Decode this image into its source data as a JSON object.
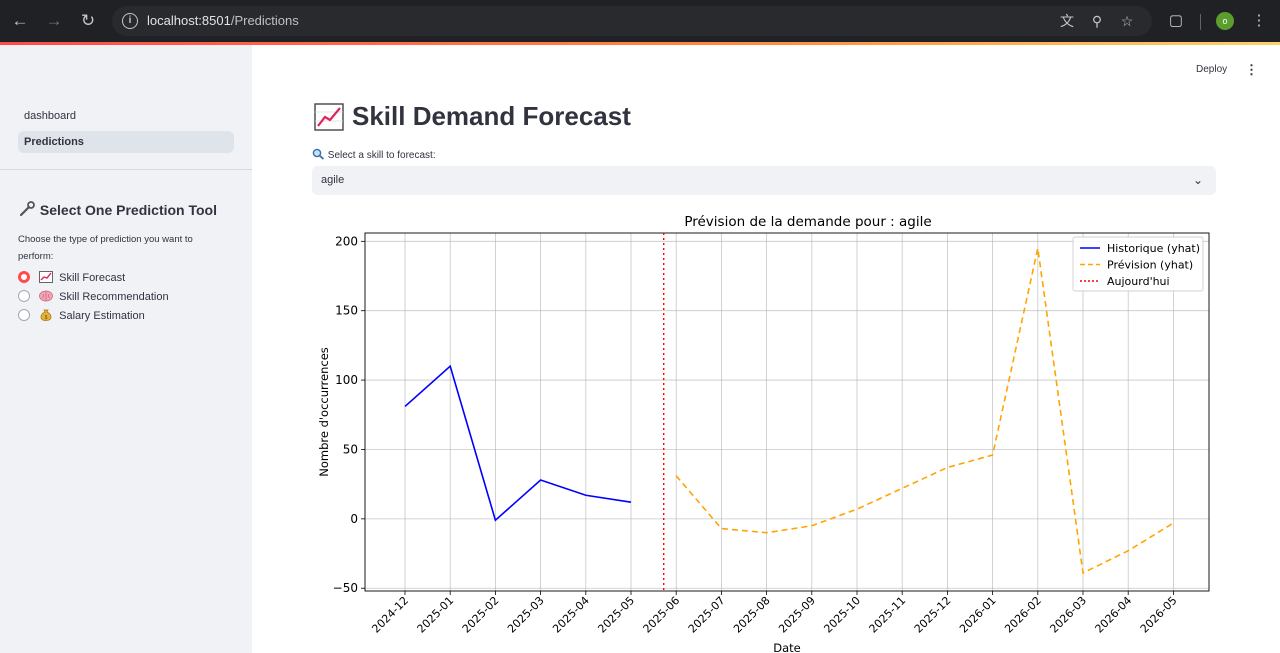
{
  "browser": {
    "url_host": "localhost:8501",
    "url_path": "/Predictions",
    "profile_initial": "o"
  },
  "header": {
    "deploy_label": "Deploy"
  },
  "sidebar": {
    "nav": [
      {
        "label": "dashboard",
        "active": false
      },
      {
        "label": "Predictions",
        "active": true
      }
    ],
    "tool_title": "Select One Prediction Tool",
    "tool_description": "Choose the type of prediction you want to perform:",
    "options": [
      {
        "label": "Skill Forecast",
        "checked": true,
        "icon": "chart-increasing-icon"
      },
      {
        "label": "Skill Recommendation",
        "checked": false,
        "icon": "brain-icon"
      },
      {
        "label": "Salary Estimation",
        "checked": false,
        "icon": "money-bag-icon"
      }
    ]
  },
  "main": {
    "title": "Skill Demand Forecast",
    "select_label": "Select a skill to forecast:",
    "select_value": "agile"
  },
  "chart_data": {
    "type": "line",
    "title": "Prévision de la demande pour : agile",
    "xlabel": "Date",
    "ylabel": "Nombre d'occurrences",
    "ylim": [
      -52,
      206
    ],
    "yticks": [
      -50,
      0,
      50,
      100,
      150,
      200
    ],
    "xticks": [
      "2024-12",
      "2025-01",
      "2025-02",
      "2025-03",
      "2025-04",
      "2025-05",
      "2025-06",
      "2025-07",
      "2025-08",
      "2025-09",
      "2025-10",
      "2025-11",
      "2025-12",
      "2026-01",
      "2026-02",
      "2026-03",
      "2026-04",
      "2026-05"
    ],
    "grid": true,
    "legend_position": "top-right",
    "today_x": "2025-05-23",
    "series": [
      {
        "name": "Historique (yhat)",
        "color": "#0000ff",
        "style": "solid",
        "x": [
          "2024-12",
          "2025-01",
          "2025-02",
          "2025-03",
          "2025-04",
          "2025-05"
        ],
        "values": [
          81,
          110,
          -1,
          28,
          17,
          12
        ]
      },
      {
        "name": "Prévision (yhat)",
        "color": "#ffa500",
        "style": "dashed",
        "x": [
          "2025-06",
          "2025-07",
          "2025-08",
          "2025-09",
          "2025-10",
          "2025-11",
          "2025-12",
          "2026-01",
          "2026-02",
          "2026-03",
          "2026-04",
          "2026-05"
        ],
        "values": [
          31,
          -7,
          -10,
          -5,
          7,
          22,
          37,
          46,
          195,
          -39,
          -23,
          -3
        ]
      },
      {
        "name": "Aujourd'hui",
        "color": "#ff0000",
        "style": "dotted"
      }
    ]
  }
}
